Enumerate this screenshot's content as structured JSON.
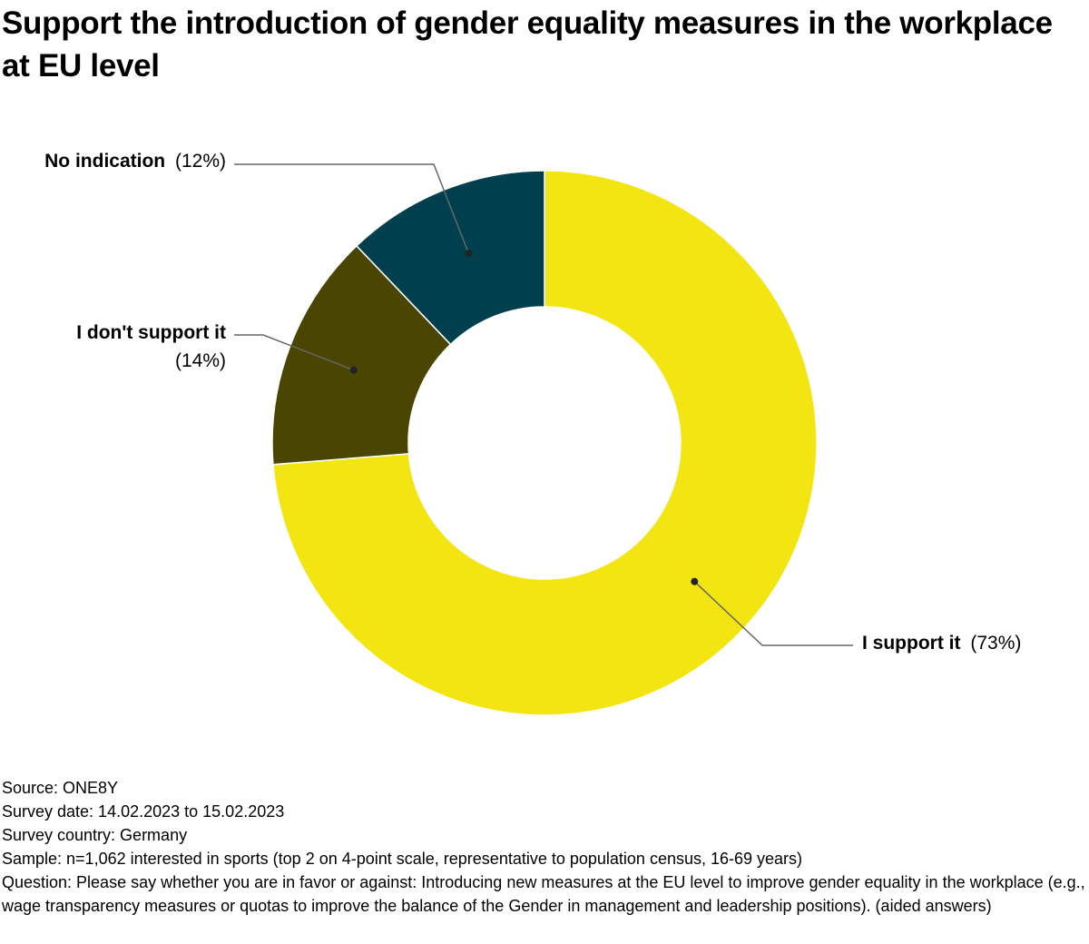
{
  "title": "Support the introduction of gender equality measures in the workplace at EU level",
  "colors": {
    "support": "#f2e511",
    "not_support": "#4a4500",
    "no_indication": "#003f4e",
    "leader": "#666666",
    "background": "#ffffff"
  },
  "chart_data": {
    "type": "pie",
    "donut": true,
    "title": "Support the introduction of gender equality measures in the workplace at EU level",
    "slices": [
      {
        "name": "I support it",
        "value": 73,
        "value_label": "(73%)",
        "color": "#f2e511"
      },
      {
        "name": "I don't support it",
        "value": 14,
        "value_label": "(14%)",
        "color": "#4a4500"
      },
      {
        "name": "No indication",
        "value": 12,
        "value_label": "(12%)",
        "color": "#003f4e"
      }
    ]
  },
  "footer": {
    "source": "Source: ONE8Y",
    "survey_date": "Survey date: 14.02.2023 to 15.02.2023",
    "survey_country": "Survey country: Germany",
    "sample": "Sample: n=1,062 interested in sports (top 2 on 4-point scale, representative to population census, 16-69 years)",
    "question": "Question: Please say whether you are in favor or against: Introducing new measures at the EU level to improve gender equality in the workplace (e.g., wage transparency measures or quotas to improve the balance of the Gender in management and leadership positions). (aided answers)"
  }
}
